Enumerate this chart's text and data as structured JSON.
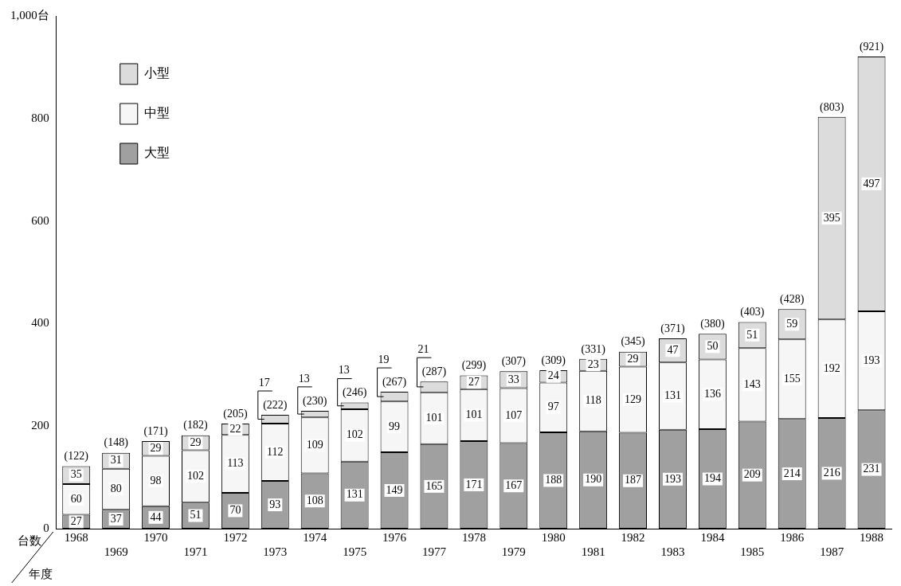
{
  "chart_data": {
    "type": "bar",
    "stacked": true,
    "xlabel": "年度",
    "ylabel": "台数",
    "categories": [
      "1968",
      "1969",
      "1970",
      "1971",
      "1972",
      "1973",
      "1974",
      "1975",
      "1976",
      "1977",
      "1978",
      "1979",
      "1980",
      "1981",
      "1982",
      "1983",
      "1984",
      "1985",
      "1986",
      "1987",
      "1988"
    ],
    "series": [
      {
        "name": "大型",
        "color": "#a0a0a0",
        "values": [
          27,
          37,
          44,
          51,
          70,
          93,
          108,
          131,
          149,
          165,
          171,
          167,
          188,
          190,
          187,
          193,
          194,
          209,
          214,
          216,
          231
        ]
      },
      {
        "name": "中型",
        "color": "#f6f6f6",
        "values": [
          60,
          80,
          98,
          102,
          113,
          112,
          109,
          102,
          99,
          101,
          101,
          107,
          97,
          118,
          129,
          131,
          136,
          143,
          155,
          192,
          193
        ]
      },
      {
        "name": "小型",
        "color": "#dcdcdc",
        "values": [
          35,
          31,
          29,
          29,
          22,
          17,
          13,
          13,
          19,
          21,
          27,
          33,
          24,
          23,
          29,
          47,
          50,
          51,
          59,
          395,
          497
        ]
      }
    ],
    "totals": [
      "(122)",
      "(148)",
      "(171)",
      "(182)",
      "(205)",
      "(222)",
      "(230)",
      "(246)",
      "(267)",
      "(287)",
      "(299)",
      "(307)",
      "(309)",
      "(331)",
      "(345)",
      "(371)",
      "(380)",
      "(403)",
      "(428)",
      "(803)",
      "(921)"
    ],
    "data_labels": true,
    "ylim": [
      0,
      1000
    ],
    "yticks": [
      0,
      200,
      400,
      600,
      800,
      {
        "value": 1000,
        "label": "1,000台"
      }
    ],
    "grid": false,
    "legend": "top left"
  }
}
